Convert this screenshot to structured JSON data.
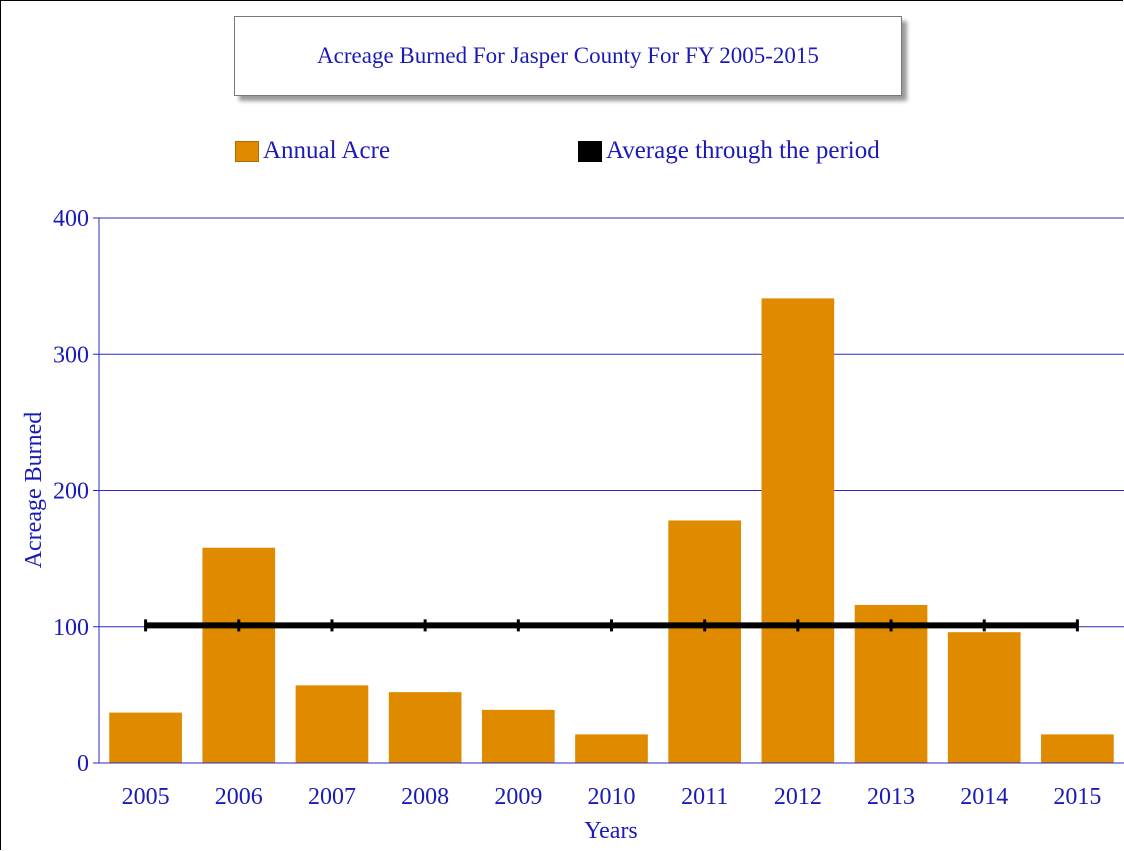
{
  "chart_data": {
    "type": "bar",
    "title": "Acreage Burned For Jasper County For FY 2005-2015",
    "xlabel": "Years",
    "ylabel": "Acreage Burned",
    "ylim": [
      0,
      400
    ],
    "yticks": [
      0,
      100,
      200,
      300,
      400
    ],
    "grid": true,
    "legend_placement": "top",
    "categories": [
      "2005",
      "2006",
      "2007",
      "2008",
      "2009",
      "2010",
      "2011",
      "2012",
      "2013",
      "2014",
      "2015"
    ],
    "series": [
      {
        "name": "Annual Acre",
        "type": "bar",
        "color": "#e08a00",
        "values": [
          37,
          158,
          57,
          52,
          39,
          21,
          178,
          341,
          116,
          96,
          21
        ]
      },
      {
        "name": "Average through the period",
        "type": "line",
        "color": "#000000",
        "values": [
          101,
          101,
          101,
          101,
          101,
          101,
          101,
          101,
          101,
          101,
          101
        ]
      }
    ],
    "colors": {
      "text": "#1a1ab8",
      "grid": "#2a2ac0",
      "bar": "#e08a00"
    }
  }
}
